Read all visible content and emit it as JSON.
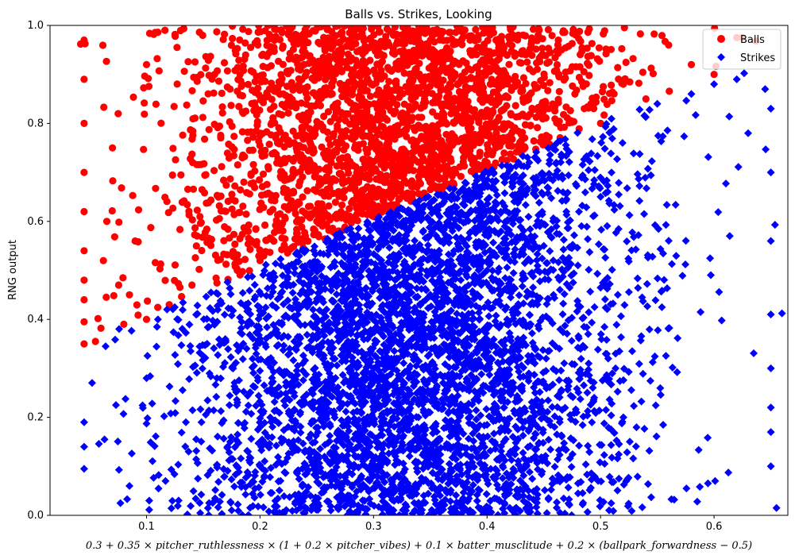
{
  "chart_data": {
    "type": "scatter",
    "title": "Balls vs. Strikes, Looking",
    "xlabel": "0.3 + 0.35 × pitcher_ruthlessness × (1 + 0.2 × pitcher_vibes) + 0.1 × batter_musclitude + 0.2 × (ballpark_forwardness − 0.5)",
    "ylabel": "RNG output",
    "xlim": [
      0.015,
      0.665
    ],
    "ylim": [
      0.0,
      1.0
    ],
    "x_ticks": [
      "0.1",
      "0.2",
      "0.3",
      "0.4",
      "0.5",
      "0.6"
    ],
    "y_ticks": [
      "0.0",
      "0.2",
      "0.4",
      "0.6",
      "0.8",
      "1.0"
    ],
    "grid": false,
    "legend_position": "top-right",
    "boundary": {
      "description": "threshold line",
      "x": [
        0.08,
        0.55
      ],
      "y": [
        0.39,
        0.85
      ]
    },
    "series": [
      {
        "name": "Balls",
        "marker": "circle",
        "color": "#ff0000",
        "sample_points": [
          [
            0.045,
            0.35
          ],
          [
            0.045,
            0.395
          ],
          [
            0.045,
            0.44
          ],
          [
            0.045,
            0.48
          ],
          [
            0.045,
            0.54
          ],
          [
            0.045,
            0.62
          ],
          [
            0.045,
            0.7
          ],
          [
            0.045,
            0.8
          ],
          [
            0.045,
            0.89
          ],
          [
            0.045,
            0.97
          ],
          [
            0.055,
            0.355
          ],
          [
            0.062,
            0.52
          ],
          [
            0.065,
            0.6
          ],
          [
            0.07,
            0.75
          ],
          [
            0.075,
            0.82
          ],
          [
            0.08,
            0.39
          ],
          [
            0.085,
            0.45
          ],
          [
            0.09,
            0.56
          ],
          [
            0.1,
            0.4
          ],
          [
            0.1,
            0.92
          ],
          [
            0.12,
            0.43
          ],
          [
            0.14,
            0.47
          ],
          [
            0.16,
            0.9
          ],
          [
            0.18,
            0.5
          ],
          [
            0.2,
            0.52
          ],
          [
            0.25,
            0.6
          ],
          [
            0.3,
            0.62
          ],
          [
            0.35,
            0.68
          ],
          [
            0.4,
            0.72
          ],
          [
            0.45,
            0.76
          ],
          [
            0.5,
            0.8
          ],
          [
            0.52,
            0.88
          ],
          [
            0.54,
            0.85
          ],
          [
            0.56,
            0.96
          ],
          [
            0.58,
            0.92
          ],
          [
            0.6,
            0.9
          ],
          [
            0.62,
            0.975
          ],
          [
            0.625,
            0.975
          ]
        ]
      },
      {
        "name": "Strikes",
        "marker": "diamond",
        "color": "#0000ff",
        "sample_points": [
          [
            0.045,
            0.095
          ],
          [
            0.045,
            0.14
          ],
          [
            0.045,
            0.19
          ],
          [
            0.063,
            0.155
          ],
          [
            0.064,
            0.345
          ],
          [
            0.077,
            0.025
          ],
          [
            0.085,
            0.06
          ],
          [
            0.1,
            0.28
          ],
          [
            0.11,
            0.4
          ],
          [
            0.2,
            0.1
          ],
          [
            0.3,
            0.3
          ],
          [
            0.35,
            0.45
          ],
          [
            0.4,
            0.5
          ],
          [
            0.45,
            0.55
          ],
          [
            0.5,
            0.65
          ],
          [
            0.55,
            0.84
          ],
          [
            0.58,
            0.86
          ],
          [
            0.6,
            0.88
          ],
          [
            0.62,
            0.89
          ],
          [
            0.63,
            0.78
          ],
          [
            0.645,
            0.87
          ],
          [
            0.65,
            0.83
          ],
          [
            0.65,
            0.7
          ],
          [
            0.65,
            0.56
          ],
          [
            0.65,
            0.41
          ],
          [
            0.65,
            0.3
          ],
          [
            0.65,
            0.22
          ],
          [
            0.65,
            0.17
          ],
          [
            0.65,
            0.1
          ],
          [
            0.655,
            0.015
          ]
        ]
      }
    ]
  }
}
